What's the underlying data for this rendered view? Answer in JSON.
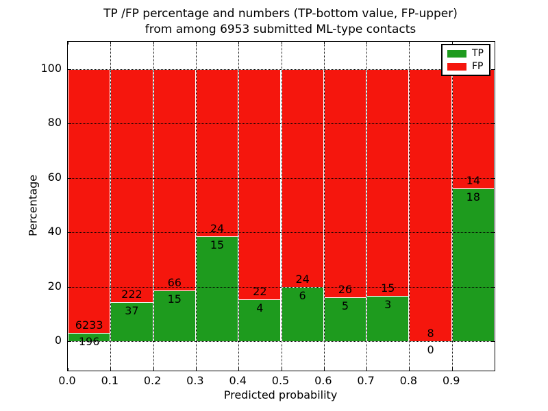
{
  "chart_data": {
    "type": "bar",
    "stacked": true,
    "title": "TP /FP percentage and numbers (TP-bottom value, FP-upper) from among 6953 submitted ML-type contacts",
    "title_lines": [
      "TP /FP percentage and numbers (TP-bottom value, FP-upper)",
      "from among 6953 submitted ML-type contacts"
    ],
    "xlabel": "Predicted probability",
    "ylabel": "Percentage",
    "xlim": [
      0.0,
      1.0
    ],
    "ylim": [
      -10.8,
      110.0
    ],
    "grid": true,
    "grid_style": "dotted",
    "yticks": [
      0,
      20,
      40,
      60,
      80,
      100
    ],
    "xtick_values": [
      0.0,
      0.1,
      0.2,
      0.3,
      0.4,
      0.5,
      0.6,
      0.7,
      0.8,
      0.9
    ],
    "xticks": [
      "0.0",
      "0.1",
      "0.2",
      "0.3",
      "0.4",
      "0.5",
      "0.6",
      "0.7",
      "0.8",
      "0.9"
    ],
    "colors": {
      "tp": "#1e9b1e",
      "fp": "#f5160d"
    },
    "legend": {
      "position": "upper right",
      "entries": [
        {
          "label": "TP",
          "color": "#1e9b1e"
        },
        {
          "label": "FP",
          "color": "#f5160d"
        }
      ]
    },
    "bins": [
      {
        "x0": 0.0,
        "x1": 0.1,
        "tp_count": 196,
        "fp_count": 6233,
        "tp_pct": 3.05,
        "fp_pct": 96.95
      },
      {
        "x0": 0.1,
        "x1": 0.2,
        "tp_count": 37,
        "fp_count": 222,
        "tp_pct": 14.29,
        "fp_pct": 85.71
      },
      {
        "x0": 0.2,
        "x1": 0.3,
        "tp_count": 15,
        "fp_count": 66,
        "tp_pct": 18.52,
        "fp_pct": 81.48
      },
      {
        "x0": 0.3,
        "x1": 0.4,
        "tp_count": 15,
        "fp_count": 24,
        "tp_pct": 38.46,
        "fp_pct": 61.54
      },
      {
        "x0": 0.4,
        "x1": 0.5,
        "tp_count": 4,
        "fp_count": 22,
        "tp_pct": 15.38,
        "fp_pct": 84.62
      },
      {
        "x0": 0.5,
        "x1": 0.6,
        "tp_count": 6,
        "fp_count": 24,
        "tp_pct": 20.0,
        "fp_pct": 80.0
      },
      {
        "x0": 0.6,
        "x1": 0.7,
        "tp_count": 5,
        "fp_count": 26,
        "tp_pct": 16.13,
        "fp_pct": 83.87
      },
      {
        "x0": 0.7,
        "x1": 0.8,
        "tp_count": 3,
        "fp_count": 15,
        "tp_pct": 16.67,
        "fp_pct": 83.33
      },
      {
        "x0": 0.8,
        "x1": 0.9,
        "tp_count": 0,
        "fp_count": 8,
        "tp_pct": 0.0,
        "fp_pct": 100.0
      },
      {
        "x0": 0.9,
        "x1": 1.0,
        "tp_count": 18,
        "fp_count": 14,
        "tp_pct": 56.25,
        "fp_pct": 43.75
      }
    ],
    "total_contacts": 6953
  }
}
